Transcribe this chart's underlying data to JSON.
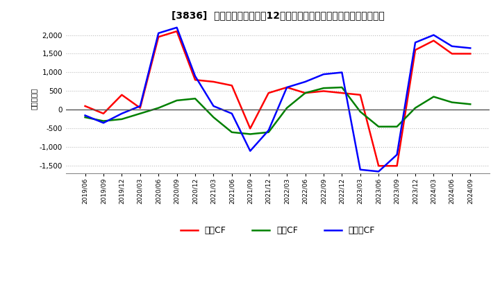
{
  "title": "[3836]  キャッシュフローの12か月移動合計の対前年同期増減額の推移",
  "ylabel": "（百万円）",
  "ylim": [
    -1700,
    2300
  ],
  "yticks": [
    -1500,
    -1000,
    -500,
    0,
    500,
    1000,
    1500,
    2000
  ],
  "line_colors": {
    "営業CF": "#ff0000",
    "投資CF": "#008000",
    "フリーCF": "#0000ff"
  },
  "dates": [
    "2019/06",
    "2019/09",
    "2019/12",
    "2020/03",
    "2020/06",
    "2020/09",
    "2020/12",
    "2021/03",
    "2021/06",
    "2021/09",
    "2021/12",
    "2022/03",
    "2022/06",
    "2022/09",
    "2022/12",
    "2023/03",
    "2023/06",
    "2023/09",
    "2023/12",
    "2024/03",
    "2024/06",
    "2024/09"
  ],
  "営業CF": [
    100,
    -100,
    400,
    50,
    1950,
    2100,
    800,
    750,
    650,
    -500,
    450,
    600,
    450,
    500,
    450,
    400,
    -1500,
    -1500,
    1600,
    1850,
    1500,
    1500
  ],
  "投資CF": [
    -200,
    -300,
    -250,
    -100,
    50,
    250,
    300,
    -200,
    -600,
    -650,
    -600,
    50,
    450,
    580,
    600,
    -50,
    -450,
    -450,
    50,
    350,
    200,
    150
  ],
  "フリーCF": [
    -150,
    -350,
    -100,
    100,
    2050,
    2200,
    900,
    100,
    -100,
    -1100,
    -550,
    600,
    750,
    950,
    1000,
    -1600,
    -1650,
    -1200,
    1800,
    2000,
    1700,
    1650
  ],
  "legend_ncol": 3,
  "background_color": "#ffffff",
  "grid_color": "#bbbbbb",
  "line_width": 1.8
}
